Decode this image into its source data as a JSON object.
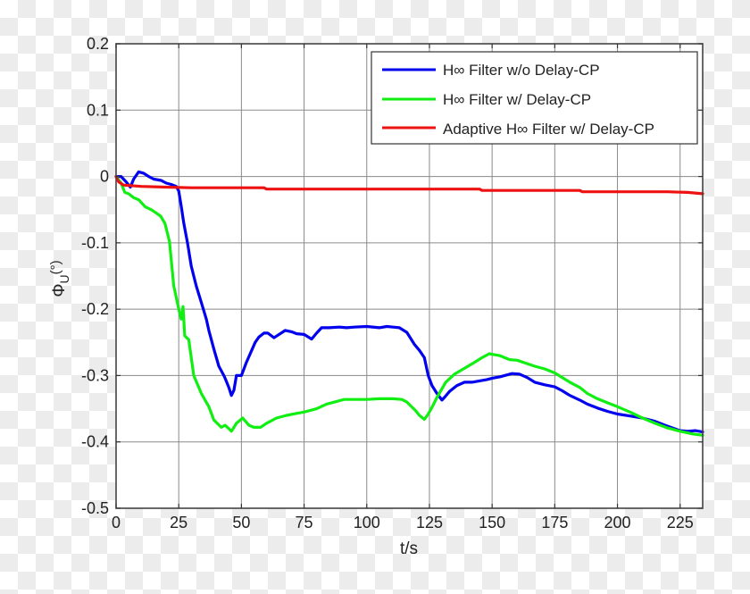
{
  "chart_data": {
    "type": "line",
    "title": "",
    "xlabel": "t/s",
    "ylabel": "ΦU(°)",
    "ylabel_main": "Φ",
    "ylabel_sub": "U",
    "ylabel_unit": "(°)",
    "xlim": [
      0,
      234
    ],
    "ylim": [
      -0.5,
      0.2
    ],
    "xticks": [
      0,
      25,
      50,
      75,
      100,
      125,
      150,
      175,
      200,
      225
    ],
    "xtick_labels": [
      "0",
      "25",
      "50",
      "75",
      "100",
      "125",
      "150",
      "175",
      "200",
      "225"
    ],
    "yticks": [
      0.2,
      0.1,
      0,
      -0.1,
      -0.2,
      -0.3,
      -0.4,
      -0.5
    ],
    "ytick_labels": [
      "0.2",
      "0.1",
      "0",
      "-0.1",
      "-0.2",
      "-0.3",
      "-0.4",
      "-0.5"
    ],
    "grid": true,
    "legend_position": "upper right",
    "series": [
      {
        "name": "H∞ Filter w/o Delay-CP",
        "color": "#0000ee",
        "x": [
          0,
          2,
          4,
          5.7,
          7,
          9,
          11,
          13,
          15,
          18,
          20,
          22,
          24,
          25,
          26,
          27,
          28.5,
          30,
          32,
          34,
          36,
          37,
          39,
          41,
          43,
          43.7,
          45,
          46,
          47,
          48,
          50,
          52,
          55.5,
          57,
          59,
          60.5,
          63,
          65,
          67.5,
          70,
          72,
          75,
          78,
          80,
          82,
          85,
          89,
          92,
          95,
          100,
          105,
          108,
          110.5,
          113,
          116,
          119,
          121,
          123,
          124.5,
          126,
          128,
          130,
          131,
          133,
          136,
          139,
          142,
          145,
          148,
          150,
          153,
          155,
          158,
          161,
          164,
          167,
          171,
          175,
          178,
          181,
          185,
          188,
          192,
          196,
          200,
          205,
          210,
          215,
          219,
          222,
          225,
          228,
          231,
          234
        ],
        "y": [
          0.0,
          0.0,
          -0.008,
          -0.016,
          -0.004,
          0.007,
          0.005,
          0.0,
          -0.004,
          -0.006,
          -0.01,
          -0.012,
          -0.015,
          -0.022,
          -0.045,
          -0.07,
          -0.1,
          -0.135,
          -0.165,
          -0.19,
          -0.215,
          -0.232,
          -0.26,
          -0.286,
          -0.3,
          -0.306,
          -0.318,
          -0.33,
          -0.322,
          -0.3,
          -0.3,
          -0.28,
          -0.25,
          -0.242,
          -0.236,
          -0.236,
          -0.243,
          -0.238,
          -0.232,
          -0.234,
          -0.237,
          -0.238,
          -0.245,
          -0.236,
          -0.228,
          -0.228,
          -0.227,
          -0.228,
          -0.227,
          -0.226,
          -0.228,
          -0.226,
          -0.227,
          -0.228,
          -0.235,
          -0.253,
          -0.262,
          -0.273,
          -0.3,
          -0.315,
          -0.327,
          -0.337,
          -0.333,
          -0.324,
          -0.315,
          -0.31,
          -0.31,
          -0.308,
          -0.306,
          -0.304,
          -0.302,
          -0.3,
          -0.297,
          -0.298,
          -0.303,
          -0.31,
          -0.314,
          -0.317,
          -0.323,
          -0.33,
          -0.337,
          -0.343,
          -0.349,
          -0.354,
          -0.358,
          -0.361,
          -0.364,
          -0.369,
          -0.375,
          -0.379,
          -0.383,
          -0.384,
          -0.383,
          -0.385
        ]
      },
      {
        "name": "H∞ Filter w/ Delay-CP",
        "color": "#11ee11",
        "x": [
          0,
          2,
          3.5,
          5,
          7,
          9,
          11.7,
          14,
          16,
          17.8,
          19.5,
          21.3,
          23,
          25,
          26,
          26.7,
          27.4,
          29,
          31,
          34,
          37,
          39,
          42,
          43.5,
          45,
          46,
          47,
          48,
          50.5,
          53,
          55,
          57.6,
          60,
          64,
          68,
          72,
          75,
          80,
          84,
          88,
          91,
          95,
          100,
          105,
          110.5,
          114,
          116,
          119.5,
          121,
          123,
          124.5,
          126,
          128,
          131.5,
          135,
          139,
          143,
          146,
          149,
          150,
          153,
          157,
          160,
          164,
          167,
          171,
          175,
          178,
          181,
          185,
          188,
          192,
          196,
          200,
          205,
          210,
          215,
          220,
          225,
          230,
          234
        ],
        "y": [
          0.0,
          -0.01,
          -0.024,
          -0.026,
          -0.032,
          -0.035,
          -0.046,
          -0.05,
          -0.055,
          -0.06,
          -0.071,
          -0.098,
          -0.165,
          -0.2,
          -0.215,
          -0.196,
          -0.24,
          -0.246,
          -0.3,
          -0.327,
          -0.347,
          -0.367,
          -0.378,
          -0.375,
          -0.38,
          -0.384,
          -0.378,
          -0.372,
          -0.364,
          -0.375,
          -0.378,
          -0.378,
          -0.372,
          -0.364,
          -0.36,
          -0.357,
          -0.355,
          -0.35,
          -0.343,
          -0.339,
          -0.336,
          -0.336,
          -0.336,
          -0.335,
          -0.335,
          -0.336,
          -0.34,
          -0.353,
          -0.36,
          -0.366,
          -0.358,
          -0.348,
          -0.333,
          -0.31,
          -0.298,
          -0.289,
          -0.28,
          -0.273,
          -0.267,
          -0.268,
          -0.27,
          -0.276,
          -0.277,
          -0.282,
          -0.286,
          -0.29,
          -0.296,
          -0.303,
          -0.31,
          -0.318,
          -0.327,
          -0.335,
          -0.341,
          -0.347,
          -0.355,
          -0.364,
          -0.372,
          -0.379,
          -0.384,
          -0.388,
          -0.39
        ]
      },
      {
        "name": "Adaptive H∞ Filter w/ Delay-CP",
        "color": "#ee1111",
        "x": [
          0,
          1,
          3,
          10,
          20,
          30,
          40,
          50,
          59,
          60,
          80,
          100,
          120,
          145,
          146,
          150,
          170,
          185,
          186,
          200,
          220,
          228,
          231,
          234
        ],
        "y": [
          0.0,
          -0.008,
          -0.013,
          -0.015,
          -0.016,
          -0.017,
          -0.017,
          -0.017,
          -0.017,
          -0.019,
          -0.019,
          -0.019,
          -0.019,
          -0.019,
          -0.021,
          -0.021,
          -0.021,
          -0.021,
          -0.023,
          -0.023,
          -0.023,
          -0.024,
          -0.025,
          -0.026
        ]
      }
    ]
  }
}
